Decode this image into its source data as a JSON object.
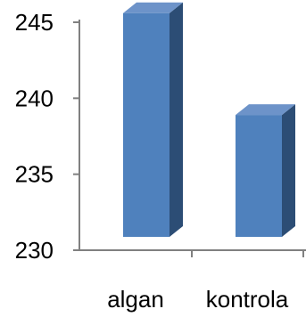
{
  "chart_data": {
    "type": "bar",
    "categories": [
      "algan",
      "kontrola"
    ],
    "values": [
      245.6,
      238.9
    ],
    "ylim": [
      230,
      246
    ],
    "yticks": [
      "230",
      "235",
      "240",
      "245"
    ],
    "grid": false,
    "legend": "none",
    "style": "3d-column",
    "colors": {
      "front": "#4f81bd",
      "side": "#2c4d75",
      "top": "#6d93c9",
      "axis": "#808080"
    }
  }
}
